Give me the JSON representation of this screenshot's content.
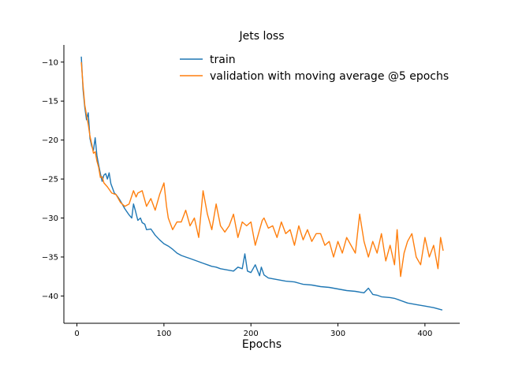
{
  "chart_data": {
    "type": "line",
    "title": "Jets loss",
    "xlabel": "Epochs",
    "ylabel": "",
    "xlim": [
      -15,
      440
    ],
    "ylim": [
      -43.5,
      -7.8
    ],
    "xticks": [
      0,
      100,
      200,
      300,
      400
    ],
    "xtick_labels": [
      "0",
      "100",
      "200",
      "300",
      "400"
    ],
    "yticks": [
      -10,
      -15,
      -20,
      -25,
      -30,
      -35,
      -40
    ],
    "ytick_labels": [
      "−10",
      "−15",
      "−20",
      "−25",
      "−30",
      "−35",
      "−40"
    ],
    "legend_position": "top-center",
    "series": [
      {
        "name": "train",
        "color": "#1f77b4",
        "x": [
          5,
          7,
          9,
          11,
          13,
          15,
          17,
          19,
          21,
          23,
          25,
          27,
          29,
          31,
          33,
          35,
          37,
          39,
          41,
          43,
          45,
          47,
          50,
          55,
          60,
          63,
          65,
          67,
          70,
          73,
          75,
          78,
          80,
          85,
          90,
          95,
          100,
          105,
          110,
          115,
          120,
          125,
          130,
          135,
          140,
          145,
          150,
          155,
          160,
          165,
          170,
          175,
          180,
          185,
          190,
          193,
          196,
          200,
          205,
          210,
          212,
          215,
          220,
          230,
          240,
          250,
          260,
          270,
          280,
          290,
          300,
          310,
          320,
          330,
          335,
          340,
          345,
          350,
          360,
          365,
          370,
          380,
          390,
          400,
          410,
          420
        ],
        "values": [
          -9.3,
          -13.5,
          -15.8,
          -17.4,
          -16.5,
          -19.8,
          -20.8,
          -21.3,
          -19.7,
          -22.0,
          -23.2,
          -24.3,
          -25.3,
          -24.5,
          -24.3,
          -25.0,
          -24.2,
          -25.6,
          -26.2,
          -26.8,
          -27.0,
          -27.3,
          -27.8,
          -28.8,
          -29.6,
          -30.0,
          -28.2,
          -29.0,
          -30.3,
          -30.0,
          -30.6,
          -30.8,
          -31.5,
          -31.4,
          -32.2,
          -32.8,
          -33.3,
          -33.6,
          -34.0,
          -34.5,
          -34.8,
          -35.0,
          -35.2,
          -35.4,
          -35.6,
          -35.8,
          -36.0,
          -36.2,
          -36.3,
          -36.5,
          -36.6,
          -36.7,
          -36.8,
          -36.3,
          -36.5,
          -34.6,
          -36.8,
          -37.0,
          -36.0,
          -37.4,
          -36.3,
          -37.3,
          -37.7,
          -37.9,
          -38.1,
          -38.2,
          -38.5,
          -38.6,
          -38.8,
          -38.9,
          -39.1,
          -39.3,
          -39.4,
          -39.6,
          -39.0,
          -39.8,
          -39.9,
          -40.1,
          -40.2,
          -40.3,
          -40.5,
          -40.9,
          -41.1,
          -41.3,
          -41.5,
          -41.8
        ]
      },
      {
        "name": "validation with moving average @5 epochs",
        "color": "#ff7f0e",
        "x": [
          5,
          7,
          9,
          11,
          13,
          15,
          17,
          19,
          21,
          23,
          25,
          27,
          29,
          31,
          35,
          40,
          45,
          50,
          55,
          60,
          65,
          68,
          70,
          75,
          80,
          85,
          90,
          95,
          100,
          103,
          105,
          110,
          115,
          120,
          125,
          130,
          135,
          140,
          145,
          150,
          155,
          160,
          165,
          170,
          175,
          180,
          185,
          190,
          195,
          200,
          205,
          210,
          213,
          215,
          220,
          225,
          230,
          235,
          240,
          245,
          250,
          255,
          260,
          265,
          270,
          275,
          280,
          285,
          290,
          295,
          300,
          305,
          310,
          315,
          320,
          325,
          330,
          335,
          340,
          345,
          350,
          355,
          360,
          365,
          368,
          372,
          376,
          380,
          385,
          390,
          395,
          400,
          405,
          410,
          415,
          418,
          421
        ],
        "values": [
          -10.0,
          -13.0,
          -15.5,
          -16.8,
          -18.0,
          -19.5,
          -20.5,
          -21.7,
          -21.5,
          -22.7,
          -23.5,
          -24.8,
          -24.7,
          -25.5,
          -26.0,
          -26.8,
          -27.0,
          -28.0,
          -28.5,
          -28.2,
          -26.5,
          -27.3,
          -26.8,
          -26.5,
          -28.5,
          -27.5,
          -29.0,
          -27.0,
          -25.5,
          -28.5,
          -30.0,
          -31.5,
          -30.5,
          -30.5,
          -29.0,
          -31.0,
          -30.0,
          -32.5,
          -26.5,
          -29.5,
          -31.5,
          -28.2,
          -31.0,
          -31.8,
          -31.0,
          -29.5,
          -32.5,
          -30.5,
          -31.0,
          -30.5,
          -33.5,
          -31.5,
          -30.3,
          -30.0,
          -31.3,
          -31.0,
          -32.5,
          -30.5,
          -32.0,
          -31.5,
          -33.5,
          -31.0,
          -32.8,
          -31.5,
          -33.0,
          -32.0,
          -32.0,
          -33.5,
          -33.0,
          -35.0,
          -33.0,
          -34.5,
          -32.5,
          -33.5,
          -34.5,
          -29.5,
          -33.0,
          -35.0,
          -33.0,
          -34.5,
          -32.0,
          -35.5,
          -33.5,
          -36.0,
          -31.5,
          -37.5,
          -34.5,
          -33.0,
          -32.0,
          -35.0,
          -36.0,
          -32.5,
          -35.0,
          -33.5,
          -36.5,
          -32.5,
          -34.2
        ]
      }
    ]
  }
}
